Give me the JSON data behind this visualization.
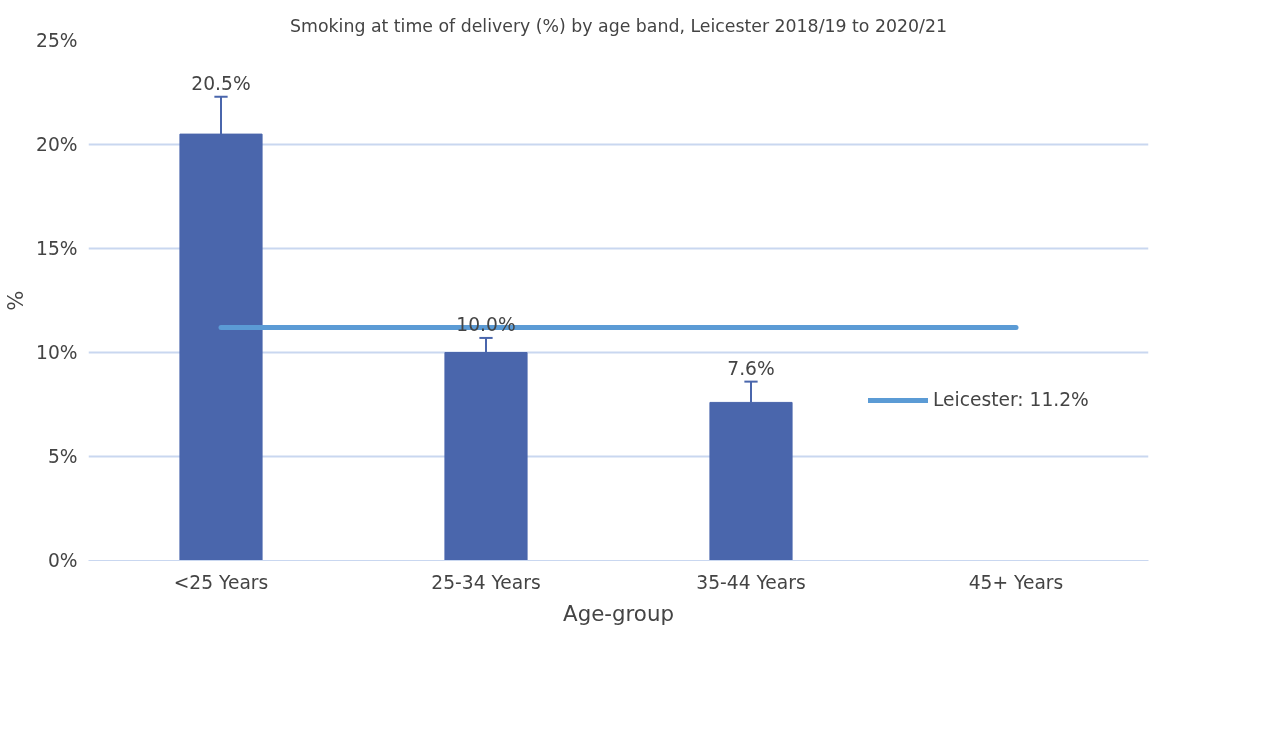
{
  "chart_data": {
    "type": "bar",
    "title": "Smoking at time of delivery (%) by age band, Leicester 2018/19 to 2020/21",
    "xlabel": "Age-group",
    "ylabel": "%",
    "categories": [
      "<25 Years",
      "25-34 Years",
      "35-44 Years",
      "45+ Years"
    ],
    "series": [
      {
        "color": "#4a66ac",
        "values": [
          20.5,
          10.0,
          7.6,
          0
        ],
        "errors": [
          [
            20.5,
            22.3
          ],
          [
            10.0,
            10.7
          ],
          [
            7.6,
            8.6
          ],
          null
        ],
        "value_labels": [
          "20.5%",
          "10.0%",
          "7.6%",
          null
        ]
      },
      {
        "type": "line",
        "name": "Leicester: 11.2%",
        "color": "#5b9bd5",
        "values": [
          11.2,
          11.2,
          11.2,
          11.2
        ]
      }
    ],
    "ylim": [
      0,
      25
    ],
    "yticks": [
      {
        "value": 0,
        "label": "0%"
      },
      {
        "value": 5,
        "label": "5%"
      },
      {
        "value": 10,
        "label": "10%"
      },
      {
        "value": 15,
        "label": "15%"
      },
      {
        "value": 20,
        "label": "20%"
      },
      {
        "value": 25,
        "label": "25%"
      }
    ],
    "grid": "y",
    "legend": "right"
  }
}
